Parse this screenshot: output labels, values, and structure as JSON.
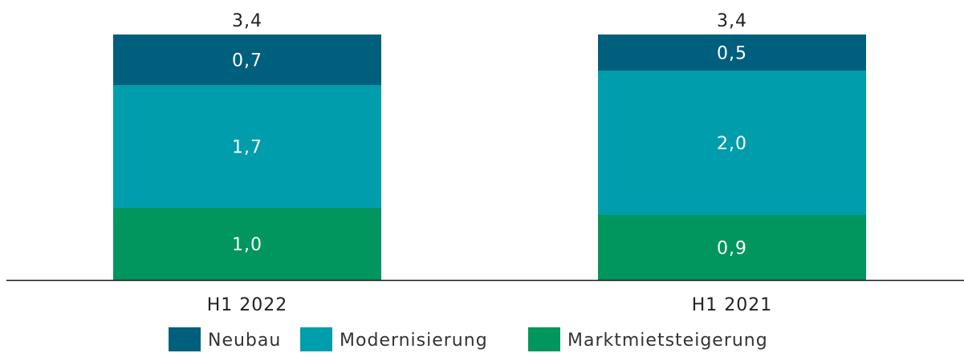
{
  "chart_data": {
    "type": "bar",
    "stacked": true,
    "categories": [
      "H1 2022",
      "H1 2021"
    ],
    "series": [
      {
        "name": "Marktmietsteigerung",
        "values": [
          1.0,
          0.9
        ],
        "labels": [
          "1,0",
          "0,9"
        ],
        "color": "#00965e"
      },
      {
        "name": "Modernisierung",
        "values": [
          1.7,
          2.0
        ],
        "labels": [
          "1,7",
          "2,0"
        ],
        "color": "#009dad"
      },
      {
        "name": "Neubau",
        "values": [
          0.7,
          0.5
        ],
        "labels": [
          "0,7",
          "0,5"
        ],
        "color": "#005f7d"
      }
    ],
    "totals": [
      3.4,
      3.4
    ],
    "total_labels": [
      "3,4",
      "3,4"
    ],
    "legend": {
      "placement": "bottom",
      "entries": [
        "Neubau",
        "Modernisierung",
        "Marktmietsteigerung"
      ]
    },
    "ylim": [
      0,
      3.4
    ],
    "grid": false
  }
}
